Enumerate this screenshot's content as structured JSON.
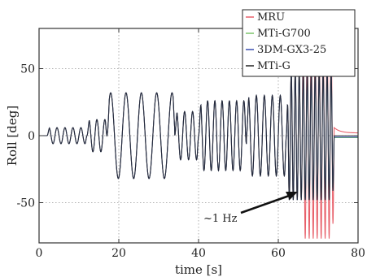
{
  "chart_data": {
    "type": "line",
    "title": "",
    "xlabel": "time [s]",
    "ylabel": "Roll [deg]",
    "xlim": [
      0,
      80
    ],
    "ylim": [
      -80,
      80
    ],
    "x_ticks": [
      0,
      20,
      40,
      60,
      80
    ],
    "y_ticks": [
      -50,
      0,
      50
    ],
    "x_tick_labels": [
      "0",
      "20",
      "40",
      "60",
      "80"
    ],
    "y_tick_labels": [
      "-50",
      "0",
      "50"
    ],
    "grid": "dotted",
    "legend_position": "top-right",
    "series": [
      {
        "name": "MRU",
        "color": "#e8606a"
      },
      {
        "name": "MTi-G700",
        "color": "#7cc46a"
      },
      {
        "name": "3DM-GX3-25",
        "color": "#3a4fb0"
      },
      {
        "name": "MTi-G",
        "color": "#222222"
      }
    ],
    "signal_segments": [
      {
        "t_start": 0,
        "t_end": 2,
        "freq_hz": 0.5,
        "amp_deg": 0
      },
      {
        "t_start": 2,
        "t_end": 12,
        "freq_hz": 0.5,
        "amp_deg": 6
      },
      {
        "t_start": 12,
        "t_end": 17,
        "freq_hz": 0.5,
        "amp_deg": 12
      },
      {
        "t_start": 17,
        "t_end": 34,
        "freq_hz": 0.26,
        "amp_deg": 32
      },
      {
        "t_start": 34,
        "t_end": 40,
        "freq_hz": 0.5,
        "amp_deg": 18
      },
      {
        "t_start": 40,
        "t_end": 52,
        "freq_hz": 0.55,
        "amp_deg": 26
      },
      {
        "t_start": 52,
        "t_end": 62,
        "freq_hz": 0.5,
        "amp_deg": 30
      },
      {
        "t_start": 62,
        "t_end": 74,
        "freq_hz": 1.0,
        "amp_deg": 48
      },
      {
        "t_start": 74,
        "t_end": 80,
        "freq_hz": 0,
        "amp_deg": 0
      }
    ],
    "annotations": [
      {
        "text": "~1 Hz",
        "points_to": [
          64,
          -42
        ]
      }
    ]
  }
}
